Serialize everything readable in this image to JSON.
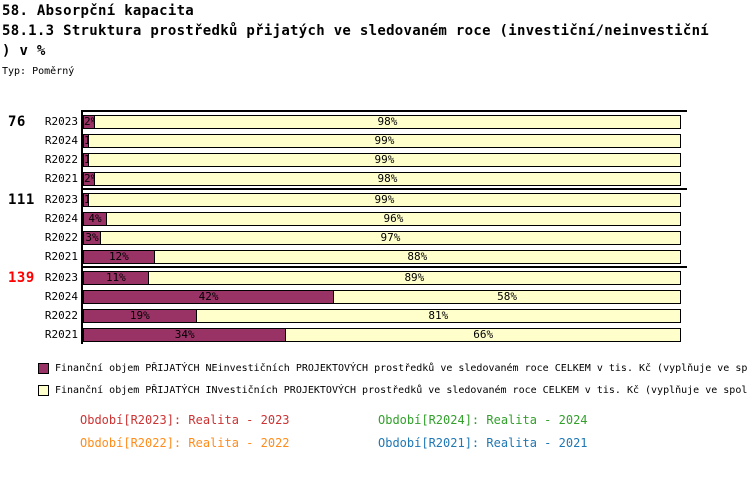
{
  "header": {
    "title": "58. Absorpční kapacita",
    "subtitle_line1": "58.1.3 Struktura prostředků přijatých ve sledovaném roce (investiční/neinvestiční",
    "subtitle_line2": ") v %",
    "type_label": "Typ: Poměrný"
  },
  "chart_data": {
    "type": "bar",
    "orientation": "horizontal-stacked",
    "unit": "%",
    "xlim": [
      0,
      100
    ],
    "grid": false,
    "series": [
      {
        "name": "NEinvestiční",
        "color": "#993366"
      },
      {
        "name": "INvestiční",
        "color": "#FFFFCC"
      }
    ],
    "groups": [
      {
        "label": "76",
        "label_color": "#000000",
        "rows": [
          {
            "period": "R2023",
            "neinvesticni_pct": 2,
            "investicni_pct": 98
          },
          {
            "period": "R2024",
            "neinvesticni_pct": 1,
            "investicni_pct": 99
          },
          {
            "period": "R2022",
            "neinvesticni_pct": 1,
            "investicni_pct": 99
          },
          {
            "period": "R2021",
            "neinvesticni_pct": 2,
            "investicni_pct": 98
          }
        ]
      },
      {
        "label": "111",
        "label_color": "#000000",
        "rows": [
          {
            "period": "R2023",
            "neinvesticni_pct": 1,
            "investicni_pct": 99
          },
          {
            "period": "R2024",
            "neinvesticni_pct": 4,
            "investicni_pct": 96
          },
          {
            "period": "R2022",
            "neinvesticni_pct": 3,
            "investicni_pct": 97
          },
          {
            "period": "R2021",
            "neinvesticni_pct": 12,
            "investicni_pct": 88
          }
        ]
      },
      {
        "label": "139",
        "label_color": "#FF0000",
        "rows": [
          {
            "period": "R2023",
            "neinvesticni_pct": 11,
            "investicni_pct": 89
          },
          {
            "period": "R2024",
            "neinvesticni_pct": 42,
            "investicni_pct": 58
          },
          {
            "period": "R2022",
            "neinvesticni_pct": 19,
            "investicni_pct": 81
          },
          {
            "period": "R2021",
            "neinvesticni_pct": 34,
            "investicni_pct": 66
          }
        ]
      }
    ]
  },
  "legend": {
    "items": [
      {
        "swatch_color": "#993366",
        "label": "Finanční objem PŘIJATÝCH NEinvestičních PROJEKTOVÝCH prostředků ve sledovaném roce CELKEM v tis. Kč (vyplňuje ve sp"
      },
      {
        "swatch_color": "#FFFFCC",
        "label": "Finanční objem PŘIJATÝCH INvestičních PROJEKTOVÝCH prostředků ve sledovaném roce CELKEM v tis. Kč (vyplňuje ve spol"
      }
    ]
  },
  "periods": [
    {
      "key": "R2023",
      "label": "Období[R2023]: Realita - 2023",
      "color": "#CC3333"
    },
    {
      "key": "R2024",
      "label": "Období[R2024]: Realita - 2024",
      "color": "#33A02C"
    },
    {
      "key": "R2022",
      "label": "Období[R2022]: Realita - 2022",
      "color": "#FF8C1A"
    },
    {
      "key": "R2021",
      "label": "Období[R2021]: Realita - 2021",
      "color": "#1F77B4"
    }
  ]
}
